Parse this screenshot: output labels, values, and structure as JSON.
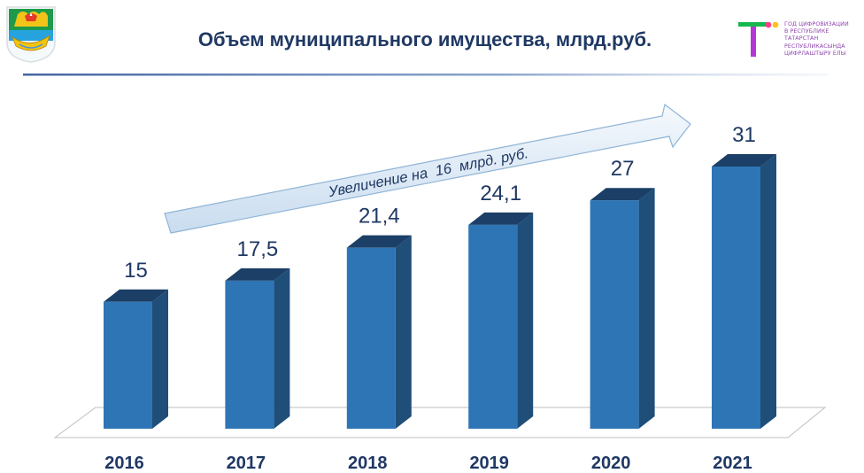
{
  "header": {
    "title": "Объем муниципального имущества, млрд.руб.",
    "emblem_icon": "city-coat-of-arms-icon",
    "brand_icon": "digitalization-year-logo-icon",
    "brand_lines": [
      "ГОД ЦИФРОВИЗАЦИИ",
      "В РЕСПУБЛИКЕ",
      "ТАТАРСТАН",
      "РЕСПУБЛИКАСЫНДА",
      "ЦИФРЛАШТЫРУ ЕЛЫ"
    ]
  },
  "colors": {
    "title": "#1f3864",
    "bar_front": "#2e75b6",
    "bar_side": "#1f4e79",
    "bar_top": "#1b3f66",
    "arrow_fill": "#dde9f3",
    "arrow_stroke": "#8fb4d6"
  },
  "chart_data": {
    "type": "bar",
    "style": "3d-column",
    "categories": [
      "2016",
      "2017",
      "2018",
      "2019",
      "2020",
      "2021"
    ],
    "values": [
      15,
      17.5,
      21.4,
      24.1,
      27,
      31
    ],
    "value_labels": [
      "15",
      "17,5",
      "21,4",
      "24,1",
      "27",
      "31"
    ],
    "ylim": [
      0,
      31
    ],
    "grid": false,
    "legend": false,
    "annotation": "Увеличение на  16  млрд. руб."
  }
}
